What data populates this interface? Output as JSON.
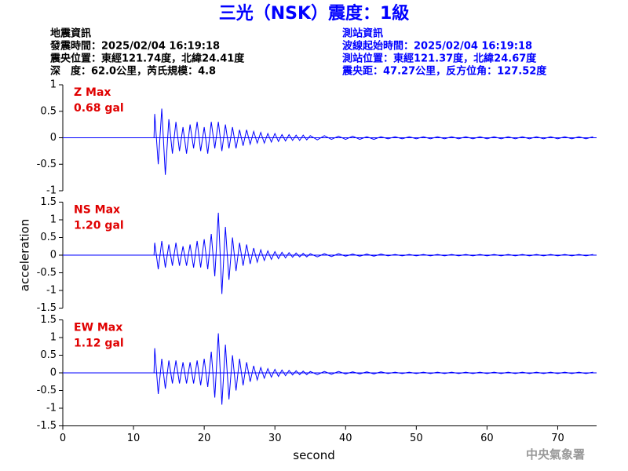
{
  "header": {
    "title": "三光（NSK）震度：1級",
    "info_left": [
      "地震資訊",
      "發震時間：2025/02/04 16:19:18",
      "震央位置：東經121.74度，北緯24.41度",
      "深　度：62.0公里，芮氏規模：4.8"
    ],
    "info_right": [
      "測站資訊",
      "波線起始時間：2025/02/04 16:19:18",
      "測站位置：東經121.37度，北緯24.67度",
      "震央距：47.27公里，反方位角：127.52度"
    ],
    "watermark": "中央氣象署"
  },
  "chart_data": [
    {
      "type": "line",
      "annotations": [
        "Z Max",
        "0.68 gal"
      ],
      "color": "#0000ff",
      "xlim": [
        0,
        75.5
      ],
      "ylim": [
        -1,
        1
      ],
      "yticks": [
        -1,
        -0.5,
        0,
        0.5,
        1
      ],
      "x": [
        0,
        12.9,
        13,
        13.5,
        14,
        14.5,
        15,
        15.5,
        16,
        16.5,
        17,
        17.5,
        18,
        18.5,
        19,
        19.5,
        20,
        20.5,
        21,
        21.5,
        22,
        22.5,
        23,
        23.5,
        24,
        24.5,
        25,
        25.5,
        26,
        26.5,
        27,
        27.5,
        28,
        28.5,
        29,
        29.5,
        30,
        30.5,
        31,
        31.5,
        32,
        32.5,
        33,
        33.5,
        34,
        34.5,
        35,
        36,
        37,
        38,
        39,
        40,
        41,
        42,
        43,
        44,
        45,
        46,
        47,
        48,
        49,
        50,
        51,
        52,
        53,
        54,
        55,
        56,
        57,
        58,
        59,
        60,
        61,
        62,
        63,
        64,
        65,
        66,
        67,
        68,
        69,
        70,
        71,
        72,
        73,
        74,
        75
      ],
      "values": [
        0,
        0,
        0.45,
        -0.5,
        0.55,
        -0.7,
        0.35,
        -0.3,
        0.3,
        -0.25,
        0.2,
        -0.3,
        0.25,
        -0.2,
        0.3,
        -0.25,
        0.2,
        -0.3,
        0.3,
        -0.2,
        0.3,
        -0.25,
        0.25,
        -0.2,
        0.2,
        -0.2,
        0.15,
        -0.15,
        0.15,
        -0.12,
        0.12,
        -0.1,
        0.1,
        -0.1,
        0.08,
        -0.08,
        0.08,
        -0.07,
        0.06,
        -0.06,
        0.06,
        -0.05,
        0.05,
        -0.05,
        0.05,
        -0.04,
        0.04,
        -0.04,
        0.04,
        -0.03,
        0.03,
        -0.03,
        0.03,
        -0.03,
        0.02,
        -0.03,
        0.02,
        -0.02,
        0.02,
        -0.02,
        0.02,
        -0.02,
        0.02,
        -0.02,
        0.02,
        -0.02,
        0.02,
        -0.02,
        0.02,
        -0.02,
        0.02,
        -0.02,
        0.02,
        -0.02,
        0.02,
        -0.02,
        0.02,
        -0.02,
        0.02,
        -0.02,
        0.02,
        -0.02,
        0.02,
        -0.02,
        0.02,
        -0.02,
        0.02
      ]
    },
    {
      "type": "line",
      "annotations": [
        "NS Max",
        "1.20 gal"
      ],
      "color": "#0000ff",
      "ylabel": "acceleration",
      "xlim": [
        0,
        75.5
      ],
      "ylim": [
        -1.5,
        1.5
      ],
      "yticks": [
        -1.5,
        -1,
        -0.5,
        0,
        0.5,
        1,
        1.5
      ],
      "x": [
        0,
        12.9,
        13,
        13.5,
        14,
        14.5,
        15,
        15.5,
        16,
        16.5,
        17,
        17.5,
        18,
        18.5,
        19,
        19.5,
        20,
        20.5,
        21,
        21.5,
        22,
        22.5,
        23,
        23.5,
        24,
        24.5,
        25,
        25.5,
        26,
        26.5,
        27,
        27.5,
        28,
        28.5,
        29,
        29.5,
        30,
        30.5,
        31,
        31.5,
        32,
        32.5,
        33,
        33.5,
        34,
        34.5,
        35,
        36,
        37,
        38,
        39,
        40,
        41,
        42,
        43,
        44,
        45,
        46,
        47,
        48,
        49,
        50,
        51,
        52,
        53,
        54,
        55,
        56,
        57,
        58,
        59,
        60,
        61,
        62,
        63,
        64,
        65,
        66,
        67,
        68,
        69,
        70,
        71,
        72,
        73,
        74,
        75
      ],
      "values": [
        0,
        0,
        0.35,
        -0.4,
        0.4,
        -0.35,
        0.3,
        -0.3,
        0.35,
        -0.3,
        0.25,
        -0.3,
        0.3,
        -0.35,
        0.4,
        -0.35,
        0.45,
        -0.4,
        0.6,
        -0.6,
        1.2,
        -1.1,
        0.8,
        -0.7,
        0.5,
        -0.45,
        0.35,
        -0.3,
        0.3,
        -0.25,
        0.2,
        -0.2,
        0.15,
        -0.15,
        0.12,
        -0.12,
        0.1,
        -0.1,
        0.08,
        -0.08,
        0.07,
        -0.06,
        0.06,
        -0.05,
        0.05,
        -0.05,
        0.04,
        -0.05,
        0.04,
        -0.04,
        0.04,
        -0.03,
        0.03,
        -0.03,
        0.03,
        -0.03,
        0.03,
        -0.02,
        0.02,
        -0.02,
        0.02,
        -0.02,
        0.02,
        -0.02,
        0.02,
        -0.02,
        0.02,
        -0.02,
        0.02,
        -0.02,
        0.02,
        -0.02,
        0.02,
        -0.02,
        0.02,
        -0.02,
        0.02,
        -0.02,
        0.02,
        -0.02,
        0.02,
        -0.02,
        0.02,
        -0.02,
        0.02,
        -0.02,
        0.02
      ]
    },
    {
      "type": "line",
      "annotations": [
        "EW Max",
        "1.12 gal"
      ],
      "color": "#0000ff",
      "xlabel": "second",
      "xlim": [
        0,
        75.5
      ],
      "xticks": [
        0,
        10,
        20,
        30,
        40,
        50,
        60,
        70
      ],
      "ylim": [
        -1.5,
        1.5
      ],
      "yticks": [
        -1.5,
        -1,
        -0.5,
        0,
        0.5,
        1,
        1.5
      ],
      "x": [
        0,
        12.9,
        13,
        13.5,
        14,
        14.5,
        15,
        15.5,
        16,
        16.5,
        17,
        17.5,
        18,
        18.5,
        19,
        19.5,
        20,
        20.5,
        21,
        21.5,
        22,
        22.5,
        23,
        23.5,
        24,
        24.5,
        25,
        25.5,
        26,
        26.5,
        27,
        27.5,
        28,
        28.5,
        29,
        29.5,
        30,
        30.5,
        31,
        31.5,
        32,
        32.5,
        33,
        33.5,
        34,
        34.5,
        35,
        36,
        37,
        38,
        39,
        40,
        41,
        42,
        43,
        44,
        45,
        46,
        47,
        48,
        49,
        50,
        51,
        52,
        53,
        54,
        55,
        56,
        57,
        58,
        59,
        60,
        61,
        62,
        63,
        64,
        65,
        66,
        67,
        68,
        69,
        70,
        71,
        72,
        73,
        74,
        75
      ],
      "values": [
        0,
        0,
        0.7,
        -0.6,
        0.4,
        -0.45,
        0.35,
        -0.3,
        0.35,
        -0.3,
        0.3,
        -0.3,
        0.3,
        -0.3,
        0.35,
        -0.35,
        0.4,
        -0.4,
        0.6,
        -0.7,
        1.12,
        -0.9,
        0.8,
        -0.75,
        0.5,
        -0.5,
        0.4,
        -0.35,
        0.3,
        -0.25,
        0.2,
        -0.2,
        0.15,
        -0.15,
        0.12,
        -0.12,
        0.1,
        -0.1,
        0.08,
        -0.08,
        0.07,
        -0.06,
        0.06,
        -0.05,
        0.05,
        -0.05,
        0.04,
        -0.05,
        0.04,
        -0.04,
        0.04,
        -0.03,
        0.03,
        -0.03,
        0.03,
        -0.03,
        0.03,
        -0.02,
        0.02,
        -0.02,
        0.02,
        -0.02,
        0.02,
        -0.02,
        0.02,
        -0.02,
        0.02,
        -0.02,
        0.02,
        -0.02,
        0.02,
        -0.02,
        0.02,
        -0.02,
        0.02,
        -0.02,
        0.02,
        -0.02,
        0.02,
        -0.02,
        0.02,
        -0.02,
        0.02,
        -0.02,
        0.02,
        -0.02,
        0.02
      ]
    }
  ]
}
